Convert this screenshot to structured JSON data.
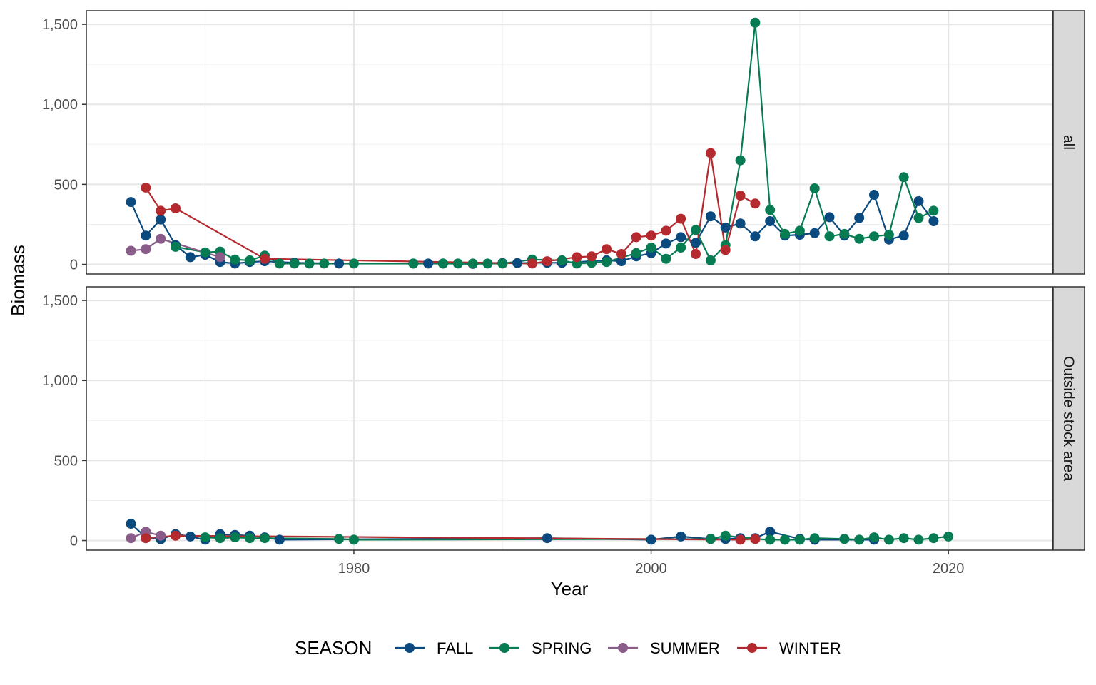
{
  "chart_data": {
    "type": "line",
    "xlabel": "Year",
    "ylabel": "Biomass",
    "x_ticks": [
      1980,
      2000,
      2020
    ],
    "y_ticks": [
      0,
      500,
      1000,
      1500
    ],
    "y_tick_labels": [
      "0",
      "500",
      "1,000",
      "1,500"
    ],
    "xlim": [
      1962,
      2027
    ],
    "ylim": [
      -60,
      1585
    ],
    "grid": true,
    "legend_position": "bottom",
    "legend_title": "SEASON",
    "colors": {
      "FALL": "#0b4a7e",
      "SPRING": "#077c52",
      "SUMMER": "#895c8a",
      "WINTER": "#b52a2f"
    },
    "panels": [
      {
        "strip": "all",
        "series": [
          {
            "name": "FALL",
            "points": [
              [
                1965,
                390
              ],
              [
                1966,
                180
              ],
              [
                1967,
                280
              ],
              [
                1968,
                120
              ],
              [
                1969,
                45
              ],
              [
                1970,
                60
              ],
              [
                1971,
                15
              ],
              [
                1972,
                5
              ],
              [
                1973,
                15
              ],
              [
                1974,
                20
              ],
              [
                1976,
                10
              ],
              [
                1979,
                5
              ],
              [
                1984,
                5
              ],
              [
                1985,
                5
              ],
              [
                1986,
                5
              ],
              [
                1988,
                3
              ],
              [
                1990,
                8
              ],
              [
                1991,
                8
              ],
              [
                1993,
                10
              ],
              [
                1994,
                10
              ],
              [
                1997,
                25
              ],
              [
                1998,
                20
              ],
              [
                1999,
                50
              ],
              [
                2000,
                70
              ],
              [
                2001,
                130
              ],
              [
                2002,
                170
              ],
              [
                2003,
                135
              ],
              [
                2004,
                300
              ],
              [
                2005,
                230
              ],
              [
                2006,
                255
              ],
              [
                2007,
                175
              ],
              [
                2008,
                270
              ],
              [
                2009,
                180
              ],
              [
                2010,
                185
              ],
              [
                2011,
                195
              ],
              [
                2012,
                295
              ],
              [
                2013,
                180
              ],
              [
                2014,
                290
              ],
              [
                2015,
                435
              ],
              [
                2016,
                155
              ],
              [
                2017,
                180
              ],
              [
                2018,
                395
              ],
              [
                2019,
                270
              ]
            ]
          },
          {
            "name": "SPRING",
            "points": [
              [
                1968,
                110
              ],
              [
                1970,
                75
              ],
              [
                1971,
                80
              ],
              [
                1972,
                30
              ],
              [
                1973,
                25
              ],
              [
                1974,
                55
              ],
              [
                1975,
                5
              ],
              [
                1976,
                5
              ],
              [
                1977,
                5
              ],
              [
                1978,
                5
              ],
              [
                1980,
                5
              ],
              [
                1984,
                5
              ],
              [
                1986,
                5
              ],
              [
                1987,
                5
              ],
              [
                1988,
                5
              ],
              [
                1989,
                5
              ],
              [
                1990,
                5
              ],
              [
                1992,
                30
              ],
              [
                1994,
                25
              ],
              [
                1995,
                5
              ],
              [
                1996,
                10
              ],
              [
                1997,
                15
              ],
              [
                1999,
                70
              ],
              [
                2000,
                105
              ],
              [
                2001,
                35
              ],
              [
                2002,
                105
              ],
              [
                2003,
                215
              ],
              [
                2004,
                25
              ],
              [
                2005,
                120
              ],
              [
                2006,
                650
              ],
              [
                2007,
                1510
              ],
              [
                2008,
                340
              ],
              [
                2009,
                190
              ],
              [
                2010,
                210
              ],
              [
                2011,
                475
              ],
              [
                2012,
                175
              ],
              [
                2013,
                190
              ],
              [
                2014,
                160
              ],
              [
                2015,
                175
              ],
              [
                2016,
                185
              ],
              [
                2017,
                545
              ],
              [
                2018,
                290
              ],
              [
                2019,
                335
              ]
            ]
          },
          {
            "name": "SUMMER",
            "points": [
              [
                1965,
                85
              ],
              [
                1966,
                95
              ],
              [
                1967,
                160
              ],
              [
                1971,
                45
              ]
            ]
          },
          {
            "name": "WINTER",
            "points": [
              [
                1966,
                480
              ],
              [
                1967,
                335
              ],
              [
                1968,
                350
              ],
              [
                1974,
                35
              ],
              [
                1992,
                5
              ],
              [
                1993,
                20
              ],
              [
                1995,
                45
              ],
              [
                1996,
                50
              ],
              [
                1997,
                95
              ],
              [
                1998,
                65
              ],
              [
                1999,
                170
              ],
              [
                2000,
                180
              ],
              [
                2001,
                210
              ],
              [
                2002,
                285
              ],
              [
                2003,
                65
              ],
              [
                2004,
                695
              ],
              [
                2005,
                90
              ],
              [
                2006,
                430
              ],
              [
                2007,
                380
              ]
            ]
          }
        ]
      },
      {
        "strip": "Outside stock area",
        "series": [
          {
            "name": "FALL",
            "points": [
              [
                1965,
                105
              ],
              [
                1966,
                20
              ],
              [
                1967,
                8
              ],
              [
                1968,
                40
              ],
              [
                1969,
                25
              ],
              [
                1970,
                5
              ],
              [
                1971,
                40
              ],
              [
                1972,
                35
              ],
              [
                1973,
                30
              ],
              [
                1974,
                20
              ],
              [
                1975,
                5
              ],
              [
                1993,
                15
              ],
              [
                2000,
                5
              ],
              [
                2002,
                25
              ],
              [
                2004,
                10
              ],
              [
                2005,
                10
              ],
              [
                2006,
                15
              ],
              [
                2007,
                15
              ],
              [
                2008,
                55
              ],
              [
                2010,
                10
              ],
              [
                2011,
                5
              ],
              [
                2015,
                5
              ]
            ]
          },
          {
            "name": "SPRING",
            "points": [
              [
                1970,
                20
              ],
              [
                1971,
                15
              ],
              [
                1972,
                20
              ],
              [
                1973,
                15
              ],
              [
                1974,
                15
              ],
              [
                1979,
                10
              ],
              [
                1980,
                5
              ],
              [
                2004,
                10
              ],
              [
                2005,
                30
              ],
              [
                2007,
                10
              ],
              [
                2008,
                5
              ],
              [
                2009,
                5
              ],
              [
                2010,
                5
              ],
              [
                2011,
                15
              ],
              [
                2013,
                10
              ],
              [
                2014,
                5
              ],
              [
                2015,
                20
              ],
              [
                2016,
                5
              ],
              [
                2017,
                15
              ],
              [
                2018,
                5
              ],
              [
                2019,
                15
              ],
              [
                2020,
                25
              ]
            ]
          },
          {
            "name": "SUMMER",
            "points": [
              [
                1965,
                15
              ],
              [
                1966,
                55
              ],
              [
                1967,
                30
              ]
            ]
          },
          {
            "name": "WINTER",
            "points": [
              [
                1966,
                15
              ],
              [
                1968,
                30
              ],
              [
                2006,
                5
              ],
              [
                2007,
                10
              ]
            ]
          }
        ]
      }
    ]
  }
}
